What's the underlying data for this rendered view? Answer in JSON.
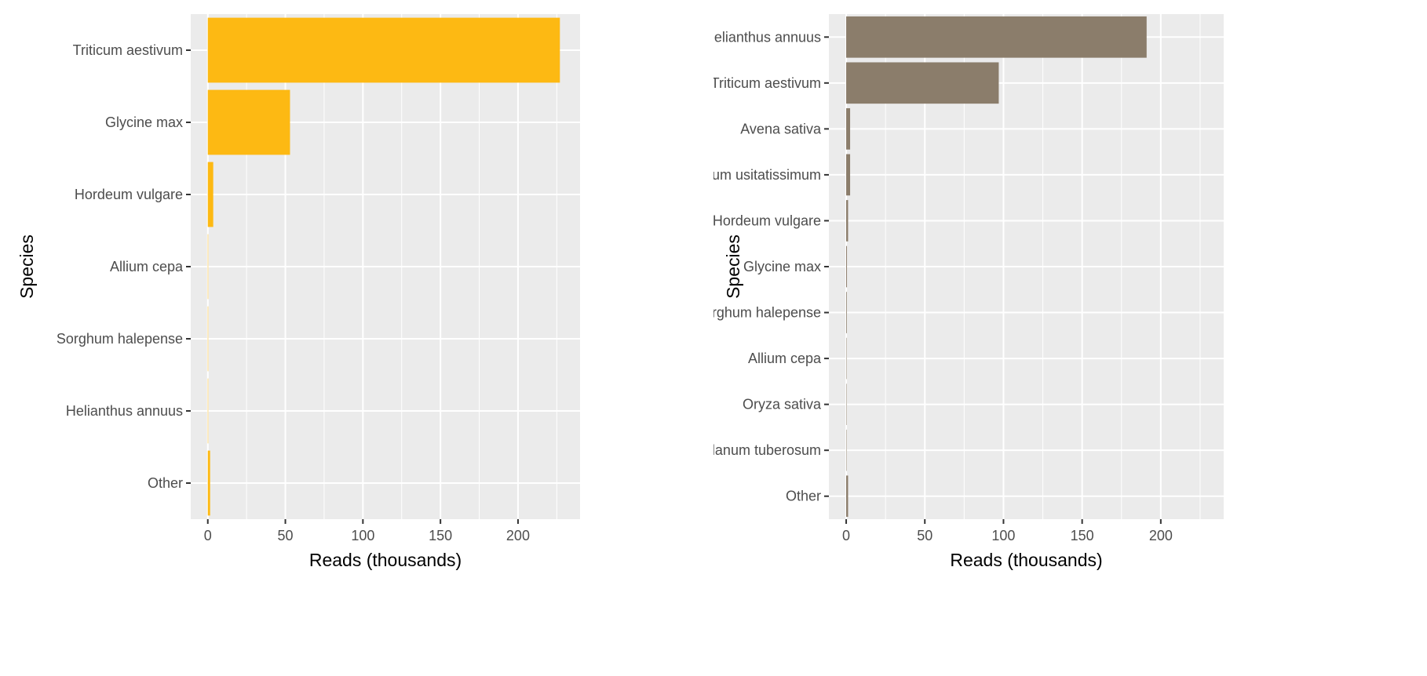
{
  "chart_data": [
    {
      "type": "bar",
      "orientation": "horizontal",
      "categories": [
        "Triticum aestivum",
        "Glycine max",
        "Hordeum vulgare",
        "Allium cepa",
        "Sorghum halepense",
        "Helianthus annuus",
        "Other"
      ],
      "values": [
        227,
        53,
        3.5,
        0.2,
        0.2,
        0.2,
        1.5
      ],
      "xlabel": "Reads (thousands)",
      "ylabel": "Species",
      "xlim": [
        -11,
        240
      ],
      "xticks": [
        "0",
        "50",
        "100",
        "150",
        "200"
      ],
      "grid": true,
      "bar_color": "#FDB913",
      "panel_background": "#EBEBEB"
    },
    {
      "type": "bar",
      "orientation": "horizontal",
      "categories": [
        "Helianthus annuus",
        "Triticum aestivum",
        "Avena sativa",
        "Linum usitatissimum",
        "Hordeum vulgare",
        "Glycine max",
        "Sorghum halepense",
        "Allium cepa",
        "Oryza sativa",
        "Solanum tuberosum",
        "Other"
      ],
      "values": [
        191,
        97,
        2.5,
        2.5,
        1.2,
        0.5,
        0.4,
        0.2,
        0.2,
        0.2,
        1.2
      ],
      "xlabel": "Reads (thousands)",
      "ylabel": "Species",
      "xlim": [
        -11,
        240
      ],
      "xticks": [
        "0",
        "50",
        "100",
        "150",
        "200"
      ],
      "grid": true,
      "bar_color": "#8B7D6B",
      "panel_background": "#EBEBEB"
    }
  ]
}
